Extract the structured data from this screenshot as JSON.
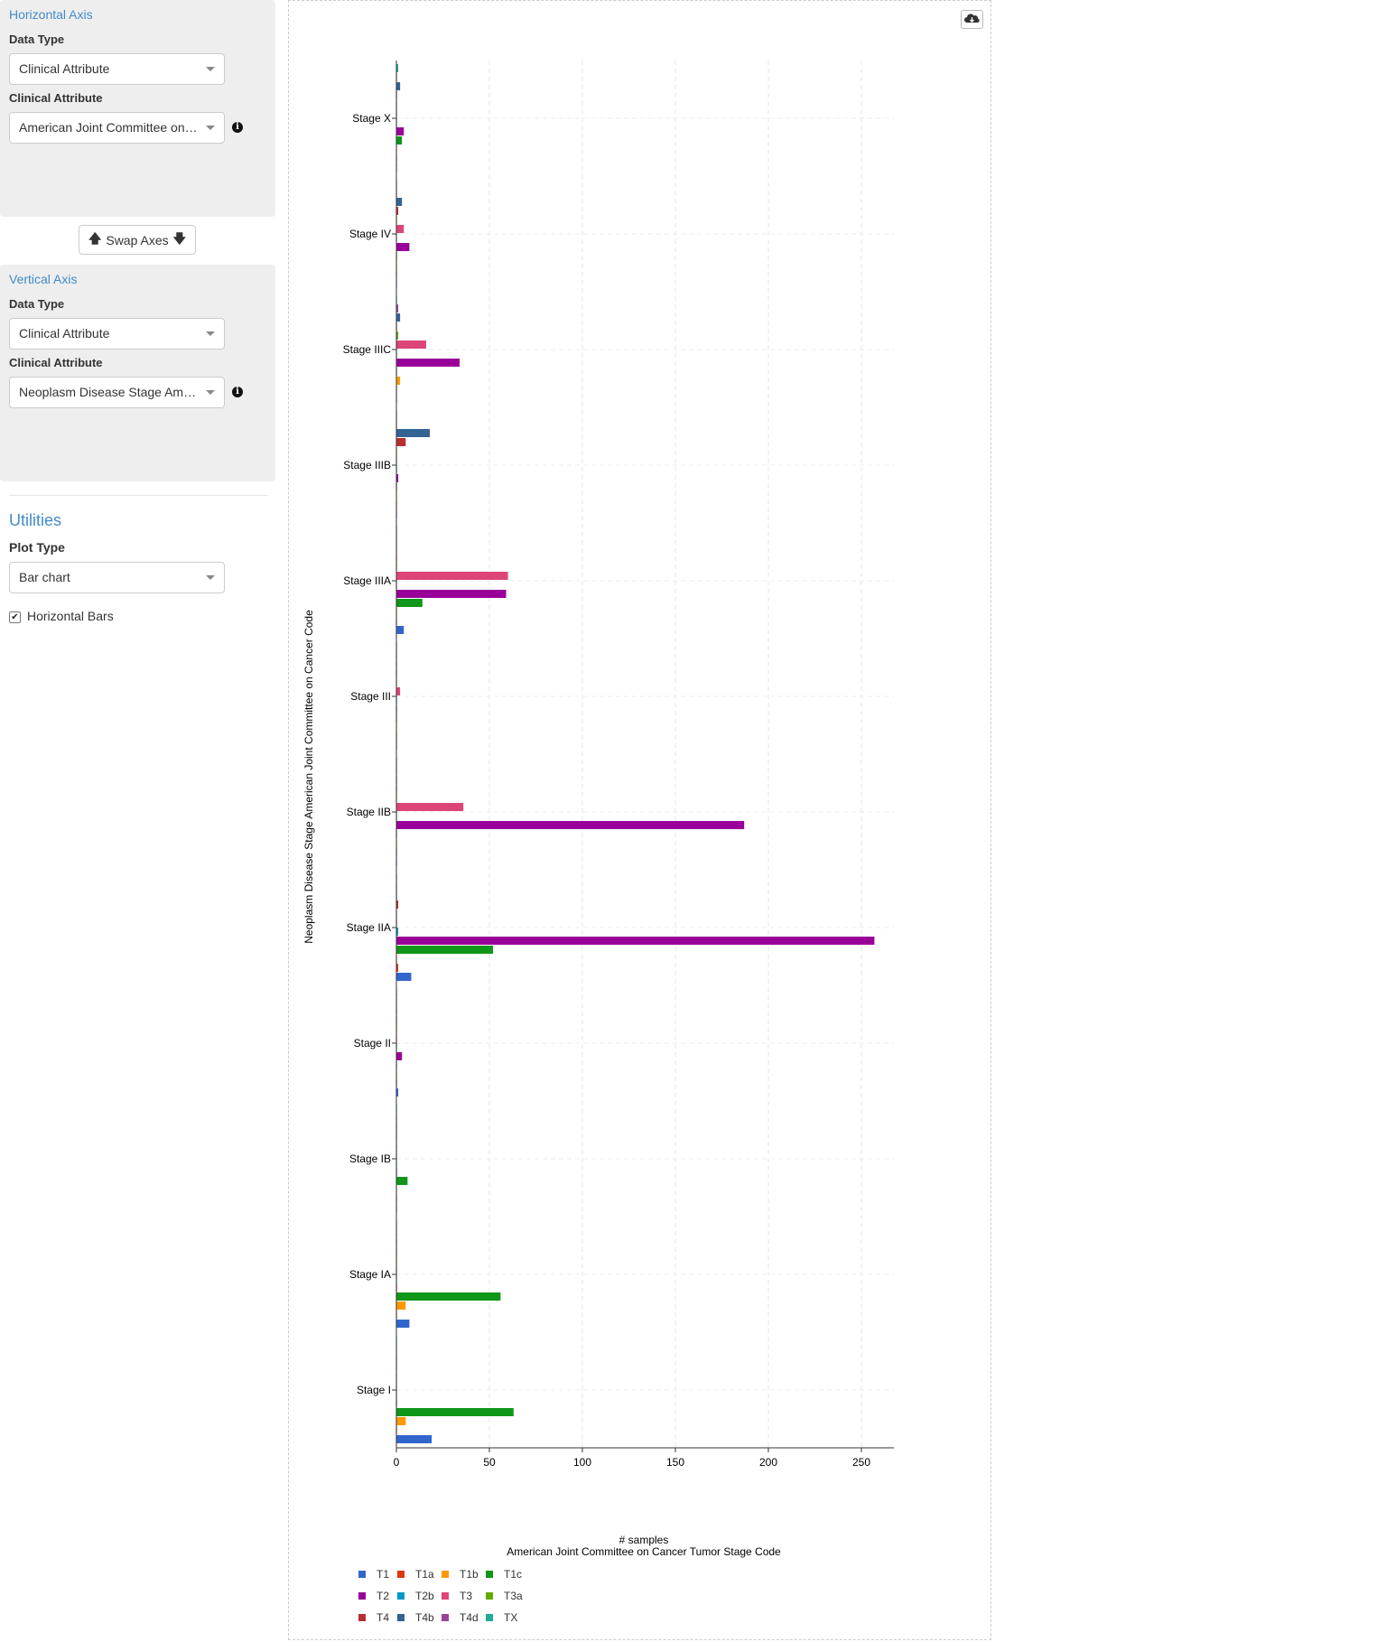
{
  "horizontal_axis": {
    "title": "Horizontal Axis",
    "data_type_label": "Data Type",
    "data_type_value": "Clinical Attribute",
    "attribute_label": "Clinical Attribute",
    "attribute_value": "American Joint Committee on Cancer Tumor Stage Code"
  },
  "swap_button": {
    "label": "Swap Axes"
  },
  "vertical_axis": {
    "title": "Vertical Axis",
    "data_type_label": "Data Type",
    "data_type_value": "Clinical Attribute",
    "attribute_label": "Clinical Attribute",
    "attribute_value": "Neoplasm Disease Stage American Joint Committee on Cancer Code"
  },
  "utilities": {
    "title": "Utilities",
    "plot_type_label": "Plot Type",
    "plot_type_value": "Bar chart",
    "horizontal_bars_label": "Horizontal Bars",
    "horizontal_bars_checked": true
  },
  "chart_data": {
    "type": "bar",
    "orientation": "horizontal",
    "xlabel": "# samples",
    "xlabel_sub": "American Joint Committee on Cancer Tumor Stage Code",
    "ylabel": "Neoplasm Disease Stage American Joint Committee on Cancer Code",
    "xlim": [
      0,
      266
    ],
    "xticks": [
      0,
      50,
      100,
      150,
      200,
      250
    ],
    "grid": true,
    "legend": "bottom",
    "categories": [
      "Stage X",
      "Stage IV",
      "Stage IIIC",
      "Stage IIIB",
      "Stage IIIA",
      "Stage III",
      "Stage IIB",
      "Stage IIA",
      "Stage II",
      "Stage IB",
      "Stage IA",
      "Stage I"
    ],
    "series": [
      {
        "name": "TX",
        "color": "#22aa99",
        "values": [
          1,
          0,
          0,
          0,
          0,
          0,
          0,
          0,
          0,
          0,
          0,
          0
        ]
      },
      {
        "name": "T4d",
        "color": "#994499",
        "values": [
          0,
          0,
          1,
          0,
          0,
          0,
          0,
          0,
          0,
          0,
          0,
          0
        ]
      },
      {
        "name": "T4b",
        "color": "#316395",
        "values": [
          2,
          3,
          2,
          18,
          0,
          0,
          0,
          0,
          0,
          0,
          0,
          0
        ]
      },
      {
        "name": "T4",
        "color": "#b82e2e",
        "values": [
          0,
          1,
          0,
          5,
          0,
          0,
          0,
          1,
          0,
          0,
          0,
          0
        ]
      },
      {
        "name": "T3a",
        "color": "#66aa00",
        "values": [
          0,
          0,
          1,
          0,
          0,
          0,
          0,
          0,
          0,
          0,
          0,
          0
        ]
      },
      {
        "name": "T3",
        "color": "#dd4477",
        "values": [
          0,
          4,
          16,
          0,
          60,
          2,
          36,
          0,
          0,
          0,
          0,
          0
        ]
      },
      {
        "name": "T2b",
        "color": "#0099c6",
        "values": [
          0,
          0,
          0,
          0,
          0,
          0,
          0,
          1,
          0,
          0,
          0,
          0
        ]
      },
      {
        "name": "T2",
        "color": "#990099",
        "values": [
          4,
          7,
          34,
          1,
          59,
          0,
          187,
          257,
          3,
          0,
          0,
          0
        ]
      },
      {
        "name": "T1c",
        "color": "#109618",
        "values": [
          3,
          0,
          0,
          0,
          14,
          0,
          0,
          52,
          0,
          6,
          56,
          63
        ]
      },
      {
        "name": "T1b",
        "color": "#ff9900",
        "values": [
          0,
          0,
          2,
          0,
          0,
          0,
          0,
          0,
          0,
          0,
          5,
          5
        ]
      },
      {
        "name": "T1a",
        "color": "#dc3912",
        "values": [
          0,
          0,
          0,
          0,
          0,
          0,
          0,
          1,
          0,
          0,
          0,
          0
        ]
      },
      {
        "name": "T1",
        "color": "#3366cc",
        "values": [
          0,
          0,
          0,
          0,
          4,
          0,
          0,
          8,
          1,
          0,
          7,
          19
        ]
      }
    ],
    "legend_items": [
      {
        "name": "T1",
        "color": "#3366cc"
      },
      {
        "name": "T1a",
        "color": "#dc3912"
      },
      {
        "name": "T1b",
        "color": "#ff9900"
      },
      {
        "name": "T1c",
        "color": "#109618"
      },
      {
        "name": "T2",
        "color": "#990099"
      },
      {
        "name": "T2b",
        "color": "#0099c6"
      },
      {
        "name": "T3",
        "color": "#dd4477"
      },
      {
        "name": "T3a",
        "color": "#66aa00"
      },
      {
        "name": "T4",
        "color": "#b82e2e"
      },
      {
        "name": "T4b",
        "color": "#316395"
      },
      {
        "name": "T4d",
        "color": "#994499"
      },
      {
        "name": "TX",
        "color": "#22aa99"
      }
    ]
  }
}
